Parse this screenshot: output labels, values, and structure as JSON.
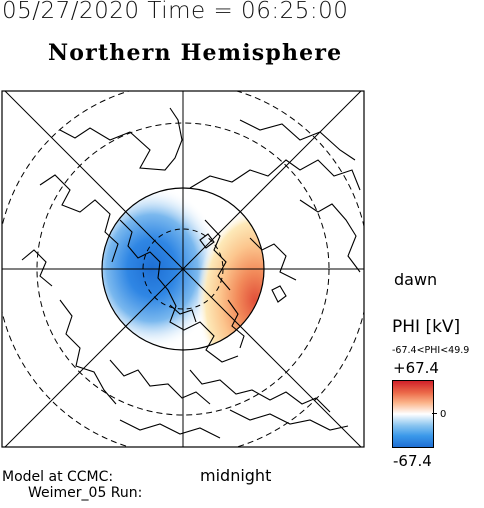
{
  "header": {
    "date_time": "05/27/2020 Time = 06:25:00",
    "title": "Northern Hemisphere"
  },
  "map": {
    "labels": {
      "dawn": "dawn",
      "midnight": "midnight"
    },
    "colors": {
      "positive": "#d1212a",
      "negative": "#1e6fd4",
      "zero": "#ffffff"
    }
  },
  "legend": {
    "title": "PHI [kV]",
    "range": "-67.4<PHI<49.9",
    "max": "+67.4",
    "mid": "0",
    "min": "-67.4"
  },
  "footer": {
    "model_line1": "Model at CCMC:",
    "model_line2": "Weimer_05 Run:"
  }
}
